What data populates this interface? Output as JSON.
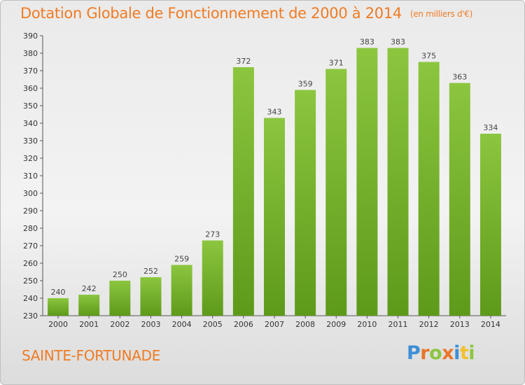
{
  "chart_data": {
    "type": "bar",
    "title": "Dotation Globale de Fonctionnement de 2000 à 2014",
    "unit_note": "(en milliers d'€)",
    "categories": [
      "2000",
      "2001",
      "2002",
      "2003",
      "2004",
      "2005",
      "2006",
      "2007",
      "2008",
      "2009",
      "2010",
      "2011",
      "2012",
      "2013",
      "2014"
    ],
    "values": [
      240,
      242,
      250,
      252,
      259,
      273,
      372,
      343,
      359,
      371,
      383,
      383,
      375,
      363,
      334
    ],
    "ylim": [
      230,
      390
    ],
    "ytick_step": 10,
    "grid": false,
    "bar_color_top": "#8cc63f",
    "bar_color_bottom": "#5e9a1a"
  },
  "footer": {
    "commune": "SAINTE-FORTUNADE",
    "logo_letters": [
      "P",
      "r",
      "o",
      "x",
      "i",
      "t",
      "i"
    ],
    "logo_colors": [
      "#3d8fd6",
      "#e8752a",
      "#8cc63f",
      "#e8752a",
      "#3d8fd6",
      "#f2c12e",
      "#8cc63f"
    ]
  }
}
